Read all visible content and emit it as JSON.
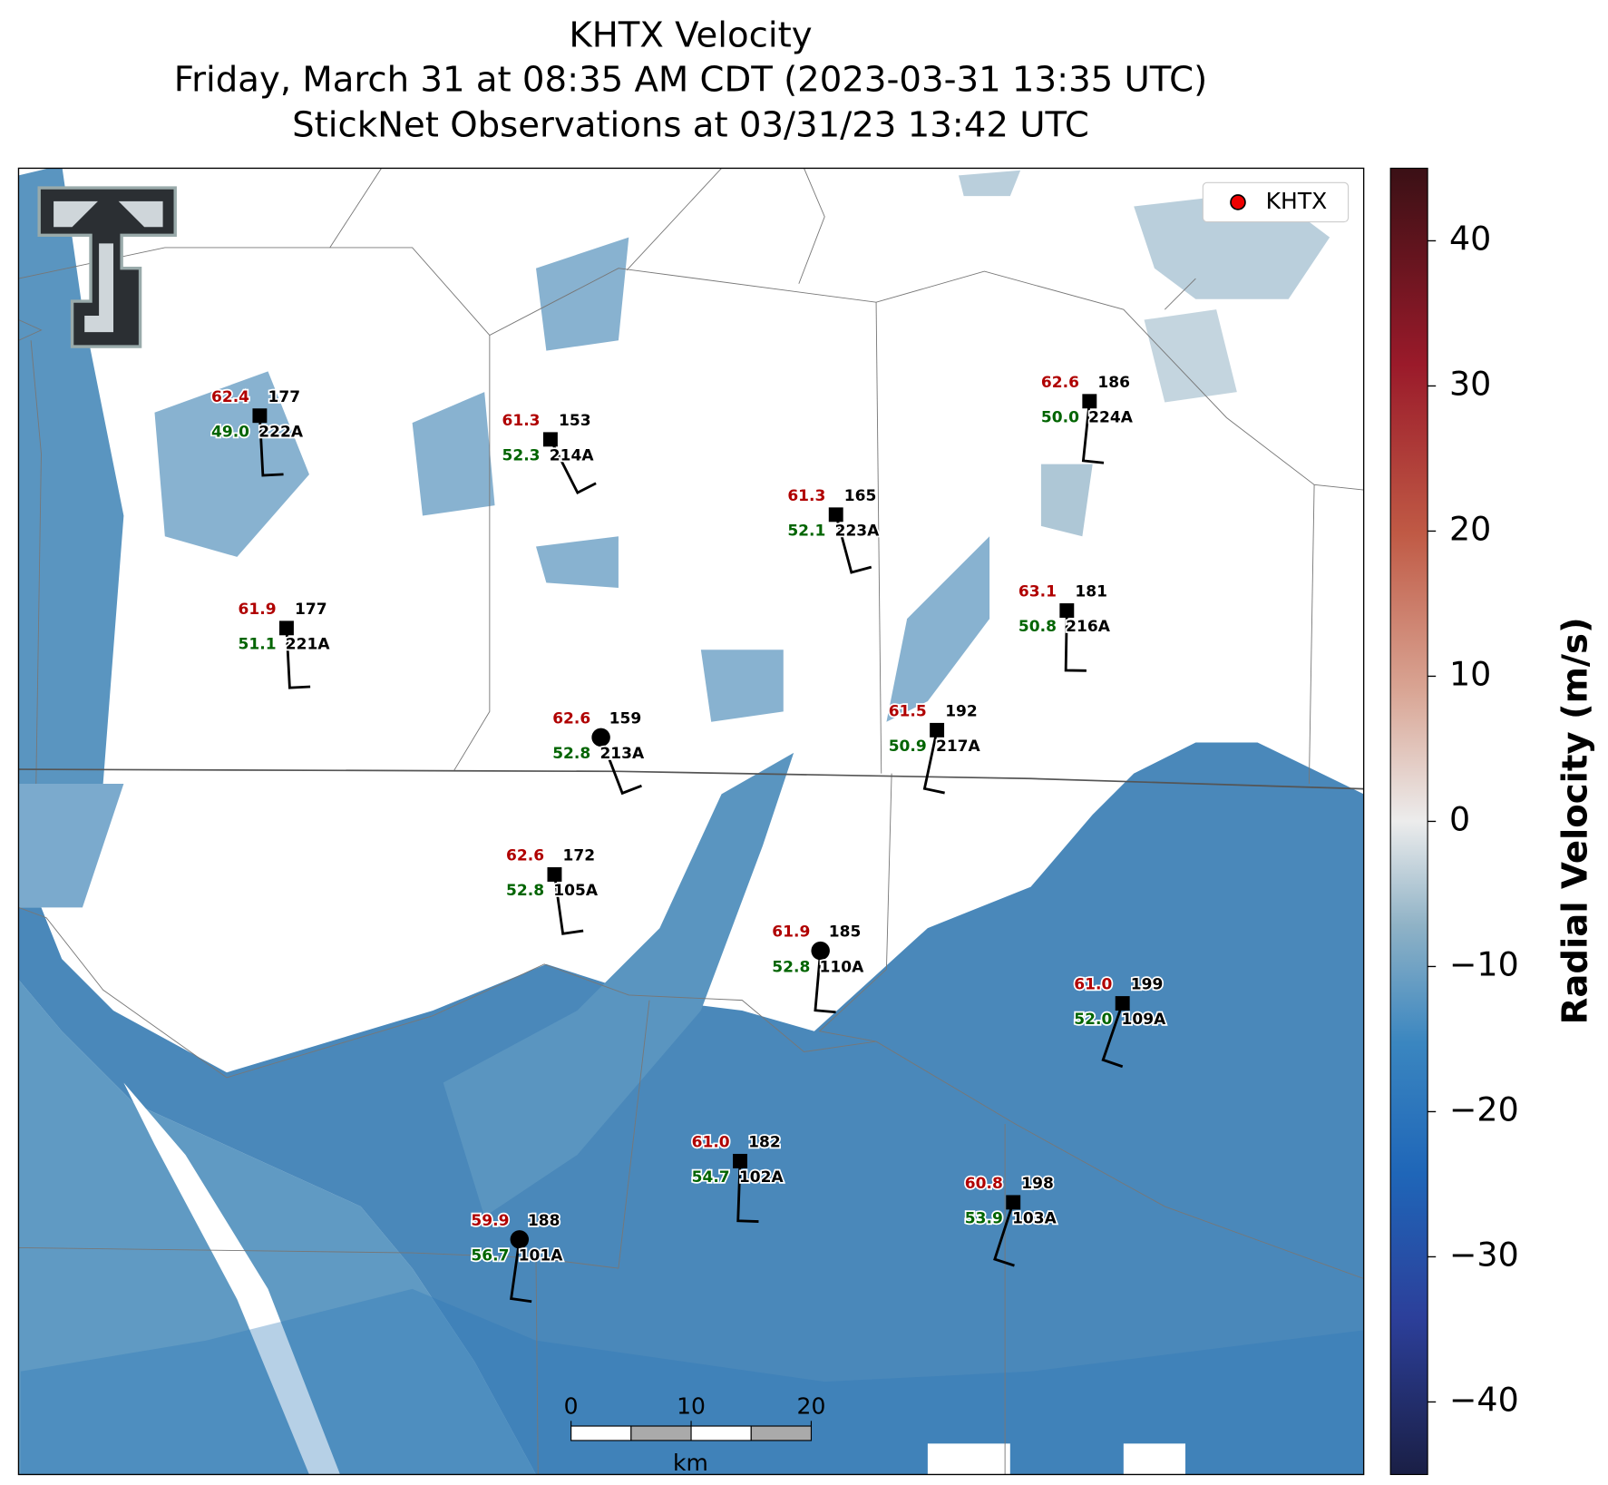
{
  "title": [
    "KHTX Velocity",
    "Friday, March 31 at 08:35 AM CDT (2023-03-31 13:35 UTC)",
    "StickNet Observations at 03/31/23 13:42 UTC"
  ],
  "legend": {
    "label": "KHTX"
  },
  "colorbar": {
    "label": "Radial Velocity (m/s)",
    "lim": [
      -45,
      45
    ],
    "ticks": [
      {
        "value": -40,
        "label": "−40"
      },
      {
        "value": -30,
        "label": "−30"
      },
      {
        "value": -20,
        "label": "−20"
      },
      {
        "value": -10,
        "label": "−10"
      },
      0,
      10,
      20,
      30,
      40
    ]
  },
  "scale_bar": {
    "ticks": [
      0,
      10,
      20
    ],
    "unit": "km"
  },
  "stations": [
    {
      "id": "222A",
      "temperature": "62.4",
      "dewpoint": "49.0",
      "direction": 177
    },
    {
      "id": "214A",
      "temperature": "61.3",
      "dewpoint": "52.3",
      "direction": 153
    },
    {
      "id": "223A",
      "temperature": "61.3",
      "dewpoint": "52.1",
      "direction": 165
    },
    {
      "id": "224A",
      "temperature": "62.6",
      "dewpoint": "50.0",
      "direction": 186
    },
    {
      "id": "221A",
      "temperature": "61.9",
      "dewpoint": "51.1",
      "direction": 177
    },
    {
      "id": "216A",
      "temperature": "63.1",
      "dewpoint": "50.8",
      "direction": 181
    },
    {
      "id": "213A",
      "temperature": "62.6",
      "dewpoint": "52.8",
      "direction": 159
    },
    {
      "id": "217A",
      "temperature": "61.5",
      "dewpoint": "50.9",
      "direction": 192
    },
    {
      "id": "105A",
      "temperature": "62.6",
      "dewpoint": "52.8",
      "direction": 172
    },
    {
      "id": "110A",
      "temperature": "61.9",
      "dewpoint": "52.8",
      "direction": 185
    },
    {
      "id": "109A",
      "temperature": "61.0",
      "dewpoint": "52.0",
      "direction": 199
    },
    {
      "id": "102A",
      "temperature": "61.0",
      "dewpoint": "54.7",
      "direction": 182
    },
    {
      "id": "103A",
      "temperature": "60.8",
      "dewpoint": "53.9",
      "direction": 198
    },
    {
      "id": "101A",
      "temperature": "59.9",
      "dewpoint": "56.7",
      "direction": 188
    }
  ]
}
